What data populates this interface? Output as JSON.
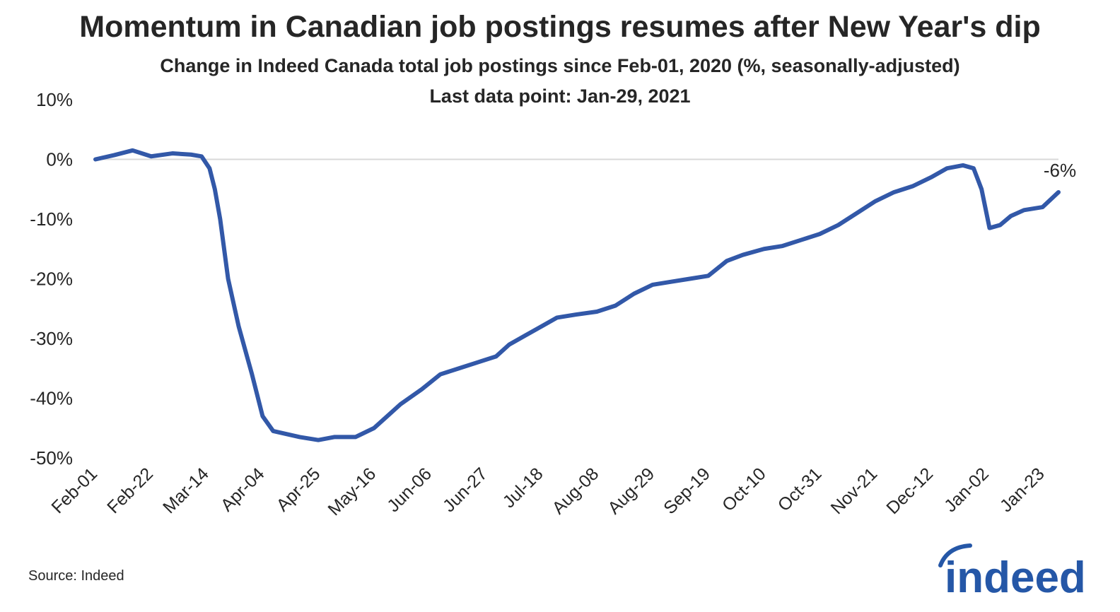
{
  "title": "Momentum in Canadian job postings resumes after New Year's dip",
  "subtitle": "Change in Indeed Canada total job postings since Feb-01, 2020 (%, seasonally-adjusted)",
  "subtitle2": "Last data point: Jan-29, 2021",
  "source": "Source: Indeed",
  "logo_text": "indeed",
  "colors": {
    "line": "#3258a8",
    "zero_line": "#d9d9d9",
    "text": "#262626",
    "logo": "#2557a7"
  },
  "chart_data": {
    "type": "line",
    "title": "Momentum in Canadian job postings resumes after New Year's dip",
    "xlabel": "",
    "ylabel": "",
    "ylim": [
      -50,
      10
    ],
    "grid": false,
    "legend": "none",
    "y_ticks": [
      "10%",
      "0%",
      "-10%",
      "-20%",
      "-30%",
      "-40%",
      "-50%"
    ],
    "x_ticks": [
      "Feb-01",
      "Feb-22",
      "Mar-14",
      "Apr-04",
      "Apr-25",
      "May-16",
      "Jun-06",
      "Jun-27",
      "Jul-18",
      "Aug-08",
      "Aug-29",
      "Sep-19",
      "Oct-10",
      "Oct-31",
      "Nov-21",
      "Dec-12",
      "Jan-02",
      "Jan-23"
    ],
    "end_label": "-6%",
    "series": [
      {
        "x": [
          "2020-02-01",
          "2020-02-08",
          "2020-02-15",
          "2020-02-22",
          "2020-03-01",
          "2020-03-08",
          "2020-03-12",
          "2020-03-15",
          "2020-03-17",
          "2020-03-19",
          "2020-03-22",
          "2020-03-26",
          "2020-03-31",
          "2020-04-04",
          "2020-04-08",
          "2020-04-13",
          "2020-04-18",
          "2020-04-25",
          "2020-05-01",
          "2020-05-09",
          "2020-05-16",
          "2020-05-21",
          "2020-05-26",
          "2020-06-03",
          "2020-06-10",
          "2020-06-17",
          "2020-06-24",
          "2020-07-01",
          "2020-07-06",
          "2020-07-12",
          "2020-07-18",
          "2020-07-24",
          "2020-07-31",
          "2020-08-08",
          "2020-08-15",
          "2020-08-22",
          "2020-08-29",
          "2020-09-05",
          "2020-09-12",
          "2020-09-19",
          "2020-09-26",
          "2020-10-02",
          "2020-10-10",
          "2020-10-17",
          "2020-10-24",
          "2020-10-31",
          "2020-11-07",
          "2020-11-14",
          "2020-11-21",
          "2020-11-28",
          "2020-12-05",
          "2020-12-12",
          "2020-12-18",
          "2020-12-24",
          "2020-12-28",
          "2020-12-31",
          "2021-01-03",
          "2021-01-07",
          "2021-01-11",
          "2021-01-16",
          "2021-01-23",
          "2021-01-29"
        ],
        "values": [
          0.0,
          0.7,
          1.5,
          0.5,
          1.0,
          0.8,
          0.5,
          -1.5,
          -5.0,
          -10.0,
          -20.0,
          -28.0,
          -36.0,
          -43.0,
          -45.5,
          -46.0,
          -46.5,
          -47.0,
          -46.5,
          -46.5,
          -45.0,
          -43.0,
          -41.0,
          -38.5,
          -36.0,
          -35.0,
          -34.0,
          -33.0,
          -31.0,
          -29.5,
          -28.0,
          -26.5,
          -26.0,
          -25.5,
          -24.5,
          -22.5,
          -21.0,
          -20.5,
          -20.0,
          -19.5,
          -17.0,
          -16.0,
          -15.0,
          -14.5,
          -13.5,
          -12.5,
          -11.0,
          -9.0,
          -7.0,
          -5.5,
          -4.5,
          -3.0,
          -1.5,
          -1.0,
          -1.5,
          -5.0,
          -11.5,
          -11.0,
          -9.5,
          -8.5,
          -8.0,
          -5.5
        ]
      }
    ]
  }
}
